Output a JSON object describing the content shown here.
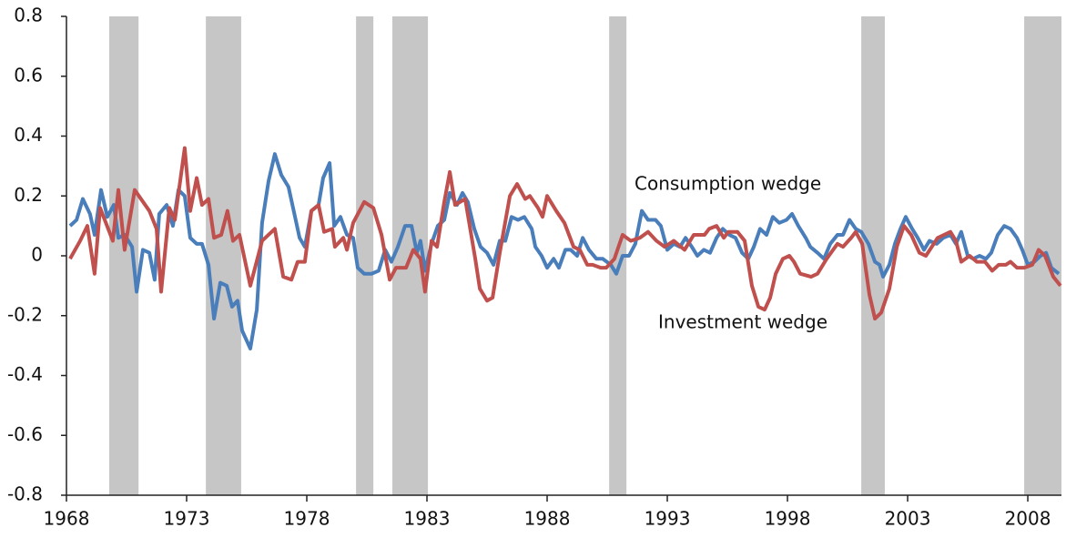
{
  "chart_data": {
    "type": "line",
    "xlim": [
      1968,
      2009.4
    ],
    "xticks": [
      1968,
      1973,
      1978,
      1983,
      1988,
      1993,
      1998,
      2003,
      2008
    ],
    "ylim": [
      -0.8,
      0.8
    ],
    "yticks": [
      -0.8,
      -0.6,
      -0.4,
      -0.2,
      0,
      0.2,
      0.4,
      0.6,
      0.8
    ],
    "shaded": [
      [
        1969.78,
        1971.0
      ],
      [
        1973.8,
        1975.27
      ],
      [
        1980.05,
        1980.77
      ],
      [
        1981.56,
        1983.04
      ],
      [
        1990.58,
        1991.3
      ],
      [
        2001.07,
        2002.05
      ],
      [
        2007.85,
        2009.4
      ]
    ],
    "shade_color": "#c6c6c6",
    "annotations": [
      "Consumption wedge",
      "Investment wedge"
    ],
    "series": [
      {
        "name": "Consumption wedge",
        "color": "#4a7ebb",
        "x": [
          1968.15,
          1968.42,
          1968.68,
          1968.98,
          1969.17,
          1969.44,
          1969.7,
          1969.97,
          1970.16,
          1970.42,
          1970.73,
          1970.92,
          1971.18,
          1971.45,
          1971.67,
          1971.86,
          1972.17,
          1972.43,
          1972.66,
          1972.92,
          1973.15,
          1973.42,
          1973.64,
          1973.91,
          1974.14,
          1974.4,
          1974.67,
          1974.89,
          1975.12,
          1975.31,
          1975.65,
          1975.92,
          1976.14,
          1976.41,
          1976.67,
          1976.94,
          1977.24,
          1977.43,
          1977.7,
          1977.92,
          1978.19,
          1978.49,
          1978.68,
          1978.95,
          1979.14,
          1979.4,
          1979.67,
          1979.93,
          1980.12,
          1980.39,
          1980.69,
          1980.99,
          1981.26,
          1981.52,
          1981.79,
          1982.09,
          1982.36,
          1982.58,
          1982.73,
          1982.92,
          1983.19,
          1983.45,
          1983.72,
          1983.95,
          1984.25,
          1984.48,
          1984.7,
          1984.97,
          1985.23,
          1985.5,
          1985.77,
          1986.03,
          1986.26,
          1986.52,
          1986.79,
          1987.05,
          1987.36,
          1987.51,
          1987.77,
          1988.0,
          1988.27,
          1988.49,
          1988.76,
          1988.98,
          1989.25,
          1989.48,
          1989.74,
          1990.05,
          1990.31,
          1990.65,
          1990.88,
          1991.14,
          1991.41,
          1991.67,
          1991.94,
          1992.2,
          1992.51,
          1992.73,
          1993.0,
          1993.27,
          1993.53,
          1993.76,
          1994.02,
          1994.25,
          1994.52,
          1994.78,
          1995.05,
          1995.31,
          1995.58,
          1995.84,
          1996.11,
          1996.37,
          1996.6,
          1996.86,
          1997.13,
          1997.39,
          1997.66,
          1997.96,
          1998.19,
          1998.45,
          1998.76,
          1998.95,
          1999.25,
          1999.52,
          1999.78,
          2000.08,
          2000.31,
          2000.58,
          2000.84,
          2001.07,
          2001.37,
          2001.64,
          2001.83,
          2001.98,
          2002.24,
          2002.47,
          2002.7,
          2002.92,
          2003.19,
          2003.42,
          2003.68,
          2003.91,
          2004.21,
          2004.48,
          2004.78,
          2005.01,
          2005.23,
          2005.5,
          2005.73,
          2005.99,
          2006.26,
          2006.48,
          2006.75,
          2007.02,
          2007.28,
          2007.55,
          2007.77,
          2008.0,
          2008.27,
          2008.53,
          2008.76,
          2008.98,
          2009.29
        ],
        "values": [
          0.1,
          0.12,
          0.19,
          0.14,
          0.07,
          0.22,
          0.13,
          0.17,
          0.06,
          0.07,
          0.03,
          -0.12,
          0.02,
          0.01,
          -0.08,
          0.14,
          0.17,
          0.1,
          0.22,
          0.2,
          0.06,
          0.04,
          0.04,
          -0.03,
          -0.21,
          -0.09,
          -0.1,
          -0.17,
          -0.15,
          -0.25,
          -0.31,
          -0.18,
          0.11,
          0.25,
          0.34,
          0.27,
          0.23,
          0.16,
          0.06,
          0.03,
          0.15,
          0.17,
          0.26,
          0.31,
          0.1,
          0.13,
          0.07,
          0.06,
          -0.04,
          -0.06,
          -0.06,
          -0.05,
          0.02,
          -0.02,
          0.03,
          0.1,
          0.1,
          0.01,
          0.05,
          -0.05,
          0.04,
          0.1,
          0.12,
          0.21,
          0.17,
          0.21,
          0.18,
          0.09,
          0.03,
          0.01,
          -0.03,
          0.05,
          0.05,
          0.13,
          0.12,
          0.13,
          0.09,
          0.03,
          0.0,
          -0.04,
          -0.01,
          -0.04,
          0.02,
          0.02,
          0.0,
          0.06,
          0.02,
          -0.01,
          -0.01,
          -0.03,
          -0.06,
          0.0,
          0.0,
          0.04,
          0.15,
          0.12,
          0.12,
          0.1,
          0.02,
          0.04,
          0.03,
          0.06,
          0.03,
          0.0,
          0.02,
          0.01,
          0.06,
          0.09,
          0.07,
          0.06,
          0.01,
          -0.01,
          0.03,
          0.09,
          0.07,
          0.13,
          0.11,
          0.12,
          0.14,
          0.1,
          0.06,
          0.03,
          0.01,
          -0.01,
          0.04,
          0.07,
          0.07,
          0.12,
          0.09,
          0.08,
          0.04,
          -0.02,
          -0.03,
          -0.07,
          -0.03,
          0.04,
          0.09,
          0.13,
          0.09,
          0.06,
          0.02,
          0.05,
          0.04,
          0.06,
          0.07,
          0.04,
          0.08,
          0.0,
          -0.01,
          0.0,
          -0.01,
          0.01,
          0.07,
          0.1,
          0.09,
          0.06,
          0.02,
          -0.03,
          -0.02,
          0.0,
          0.01,
          -0.04,
          -0.06
        ]
      },
      {
        "name": "Investment wedge",
        "color": "#c0504d",
        "x": [
          1968.15,
          1968.57,
          1968.87,
          1969.17,
          1969.4,
          1969.93,
          1970.16,
          1970.42,
          1970.84,
          1971.45,
          1971.75,
          1971.94,
          1972.28,
          1972.51,
          1972.92,
          1973.15,
          1973.42,
          1973.64,
          1973.91,
          1974.14,
          1974.44,
          1974.7,
          1974.93,
          1975.2,
          1975.65,
          1976.14,
          1976.67,
          1977.02,
          1977.36,
          1977.62,
          1977.92,
          1978.19,
          1978.49,
          1978.72,
          1979.06,
          1979.17,
          1979.52,
          1979.67,
          1979.93,
          1980.39,
          1980.77,
          1981.11,
          1981.45,
          1981.71,
          1982.13,
          1982.43,
          1982.73,
          1982.92,
          1983.19,
          1983.42,
          1983.72,
          1983.95,
          1984.17,
          1984.59,
          1985.01,
          1985.2,
          1985.5,
          1985.73,
          1986.03,
          1986.45,
          1986.75,
          1987.09,
          1987.28,
          1987.62,
          1987.81,
          1988.0,
          1988.38,
          1988.72,
          1989.1,
          1989.36,
          1989.67,
          1989.89,
          1990.23,
          1990.46,
          1990.8,
          1991.14,
          1991.48,
          1991.86,
          1992.2,
          1992.55,
          1992.89,
          1993.27,
          1993.72,
          1994.1,
          1994.55,
          1994.74,
          1995.05,
          1995.35,
          1995.54,
          1995.92,
          1996.22,
          1996.52,
          1996.79,
          1997.05,
          1997.28,
          1997.51,
          1997.81,
          1998.08,
          1998.27,
          1998.53,
          1998.98,
          1999.25,
          1999.63,
          2000.08,
          2000.31,
          2000.65,
          2000.84,
          2001.11,
          2001.41,
          2001.64,
          2001.9,
          2002.24,
          2002.55,
          2002.85,
          2003.15,
          2003.49,
          2003.76,
          2004.25,
          2004.78,
          2005.01,
          2005.23,
          2005.58,
          2005.88,
          2006.22,
          2006.52,
          2006.79,
          2007.09,
          2007.28,
          2007.55,
          2007.85,
          2008.19,
          2008.45,
          2008.72,
          2009.06,
          2009.36
        ],
        "values": [
          -0.01,
          0.05,
          0.1,
          -0.06,
          0.16,
          0.05,
          0.22,
          0.02,
          0.22,
          0.15,
          0.09,
          -0.12,
          0.16,
          0.12,
          0.36,
          0.15,
          0.26,
          0.17,
          0.19,
          0.06,
          0.07,
          0.15,
          0.05,
          0.07,
          -0.1,
          0.05,
          0.09,
          -0.07,
          -0.08,
          -0.02,
          -0.02,
          0.15,
          0.17,
          0.08,
          0.09,
          0.03,
          0.06,
          0.02,
          0.11,
          0.18,
          0.16,
          0.07,
          -0.08,
          -0.04,
          -0.04,
          0.02,
          -0.01,
          -0.12,
          0.05,
          0.03,
          0.18,
          0.28,
          0.17,
          0.19,
          -0.01,
          -0.11,
          -0.15,
          -0.14,
          0.01,
          0.2,
          0.24,
          0.19,
          0.2,
          0.16,
          0.13,
          0.2,
          0.15,
          0.11,
          0.03,
          0.02,
          -0.03,
          -0.03,
          -0.04,
          -0.04,
          -0.01,
          0.07,
          0.05,
          0.06,
          0.08,
          0.05,
          0.03,
          0.05,
          0.02,
          0.07,
          0.07,
          0.09,
          0.1,
          0.06,
          0.08,
          0.08,
          0.05,
          -0.1,
          -0.17,
          -0.18,
          -0.14,
          -0.06,
          -0.01,
          0.0,
          -0.02,
          -0.06,
          -0.07,
          -0.06,
          -0.01,
          0.04,
          0.03,
          0.06,
          0.08,
          0.04,
          -0.13,
          -0.21,
          -0.19,
          -0.11,
          0.03,
          0.1,
          0.07,
          0.01,
          0.0,
          0.06,
          0.08,
          0.05,
          -0.02,
          0.0,
          -0.02,
          -0.02,
          -0.05,
          -0.03,
          -0.03,
          -0.02,
          -0.04,
          -0.04,
          -0.03,
          0.02,
          0.0,
          -0.07,
          -0.1
        ]
      }
    ]
  }
}
